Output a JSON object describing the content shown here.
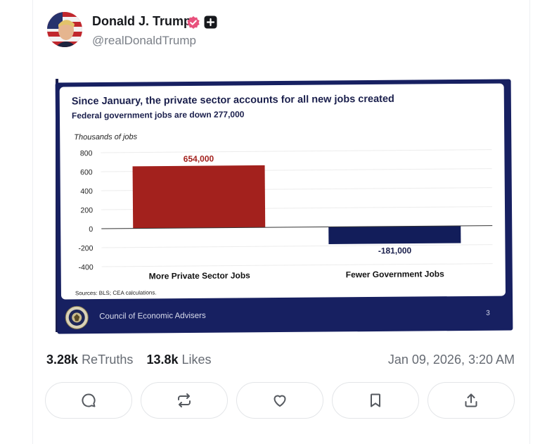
{
  "post": {
    "author_name": "Donald J. Trump",
    "author_handle": "@realDonaldTrump",
    "retruths_count": "3.28k",
    "retruths_label": "ReTruths",
    "likes_count": "13.8k",
    "likes_label": "Likes",
    "timestamp": "Jan 09, 2026, 3:20 AM"
  },
  "slide": {
    "title": "Since January, the private sector accounts for all new jobs created",
    "subtitle": "Federal government jobs are down 277,000",
    "y_axis_label": "Thousands of jobs",
    "source": "Sources: BLS; CEA calculations.",
    "footer_text": "Council of Economic Advisers",
    "page_number": "3"
  },
  "chart_data": {
    "type": "bar",
    "categories": [
      "More Private Sector Jobs",
      "Fewer Government Jobs"
    ],
    "values": [
      654,
      -181
    ],
    "data_labels": [
      "654,000",
      "-181,000"
    ],
    "colors": [
      "#a3211d",
      "#121d5a"
    ],
    "ylabel": "Thousands of jobs",
    "ylim": [
      -400,
      800
    ],
    "yticks": [
      800,
      600,
      400,
      200,
      0,
      -200,
      -400
    ],
    "grid": true
  },
  "actions": [
    {
      "name": "reply",
      "icon": "comment-icon"
    },
    {
      "name": "retruth",
      "icon": "repost-icon"
    },
    {
      "name": "like",
      "icon": "heart-icon"
    },
    {
      "name": "bookmark",
      "icon": "bookmark-icon"
    },
    {
      "name": "share",
      "icon": "share-icon"
    }
  ],
  "colors": {
    "verified": "#e8527d",
    "slide_navy": "#172061",
    "private_bar": "#a3211d",
    "government_bar": "#121d5a"
  }
}
